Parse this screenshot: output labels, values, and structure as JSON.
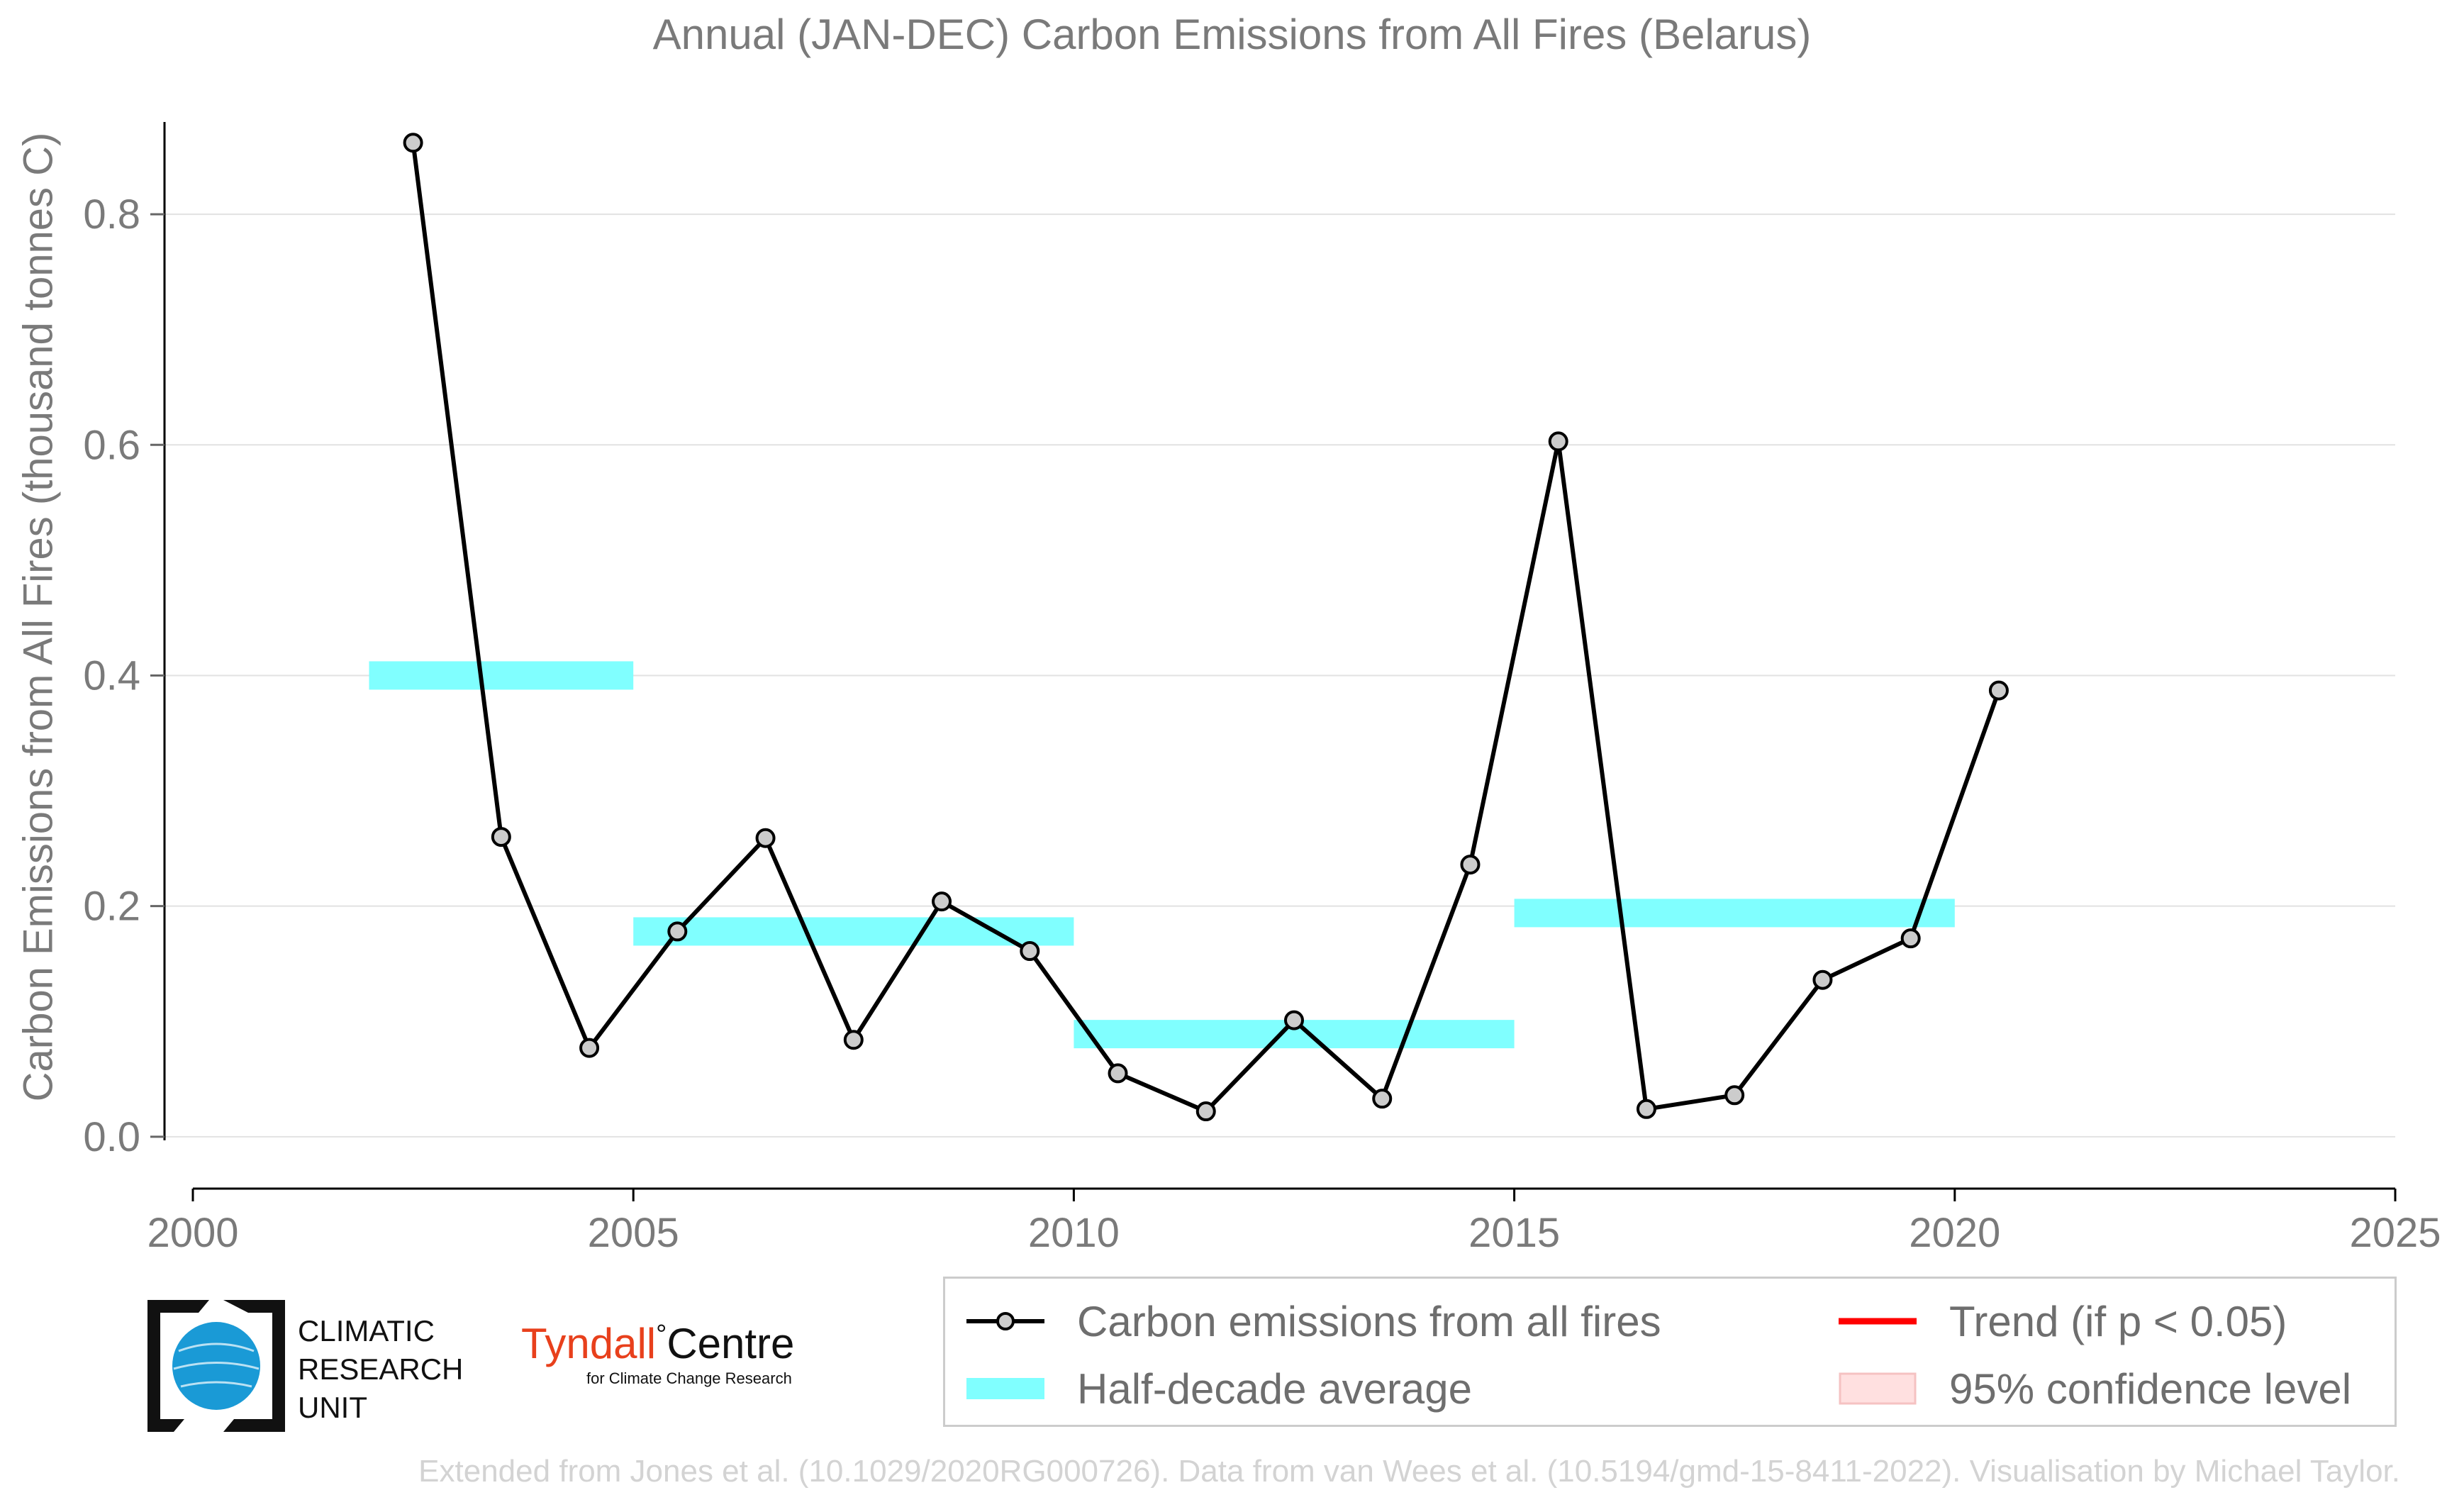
{
  "chart_data": {
    "type": "line",
    "title": "Annual (JAN-DEC) Carbon Emissions from All Fires (Belarus)",
    "ylabel": "Carbon Emissions from All Fires (thousand tonnes C)",
    "xlabel": "",
    "xlim": [
      2000,
      2025
    ],
    "ylim": [
      -0.045,
      0.88
    ],
    "x_ticks": [
      2000,
      2005,
      2010,
      2015,
      2020,
      2025
    ],
    "y_ticks": [
      0.0,
      0.2,
      0.4,
      0.6,
      0.8
    ],
    "y_tick_labels": [
      "0.0",
      "0.2",
      "0.4",
      "0.6",
      "0.8"
    ],
    "grid": "horizontal",
    "legend_position": "bottom-right",
    "series": [
      {
        "name": "Carbon emissions from all fires",
        "color": "#000000",
        "marker_fill": "#cccccc",
        "x": [
          2002.5,
          2003.5,
          2004.5,
          2005.5,
          2006.5,
          2007.5,
          2008.5,
          2009.5,
          2010.5,
          2011.5,
          2012.5,
          2013.5,
          2014.5,
          2015.5,
          2016.5,
          2017.5,
          2018.5,
          2019.5,
          2020.5
        ],
        "values": [
          0.862,
          0.26,
          0.077,
          0.178,
          0.259,
          0.084,
          0.204,
          0.161,
          0.055,
          0.022,
          0.101,
          0.033,
          0.236,
          0.603,
          0.024,
          0.036,
          0.136,
          0.172,
          0.387
        ]
      }
    ],
    "half_decade_average": {
      "name": "Half-decade average",
      "color": "#80ffff",
      "segments": [
        {
          "x_start": 2002,
          "x_end": 2005,
          "value": 0.4
        },
        {
          "x_start": 2005,
          "x_end": 2010,
          "value": 0.178
        },
        {
          "x_start": 2010,
          "x_end": 2015,
          "value": 0.089
        },
        {
          "x_start": 2015,
          "x_end": 2020,
          "value": 0.194
        }
      ]
    },
    "legend": [
      {
        "label": "Carbon emissions from all fires",
        "kind": "line-marker",
        "color": "#000000"
      },
      {
        "label": "Half-decade average",
        "kind": "band",
        "color": "#80ffff"
      },
      {
        "label": "Trend (if p < 0.05)",
        "kind": "line",
        "color": "#ff0000"
      },
      {
        "label": "95% confidence level",
        "kind": "patch",
        "color": "#ffe0e0"
      }
    ]
  },
  "logos": {
    "cru": {
      "line1": "CLIMATIC",
      "line2": "RESEARCH",
      "line3": "UNIT",
      "icon": "globe-icon"
    },
    "tyndall": {
      "name": "Tyndall",
      "degree": "°",
      "centre": "Centre",
      "subtitle": "for Climate Change Research"
    }
  },
  "footer": "Extended from Jones et al. (10.1029/2020RG000726). Data from van Wees et al. (10.5194/gmd-15-8411-2022). Visualisation by Michael Taylor."
}
